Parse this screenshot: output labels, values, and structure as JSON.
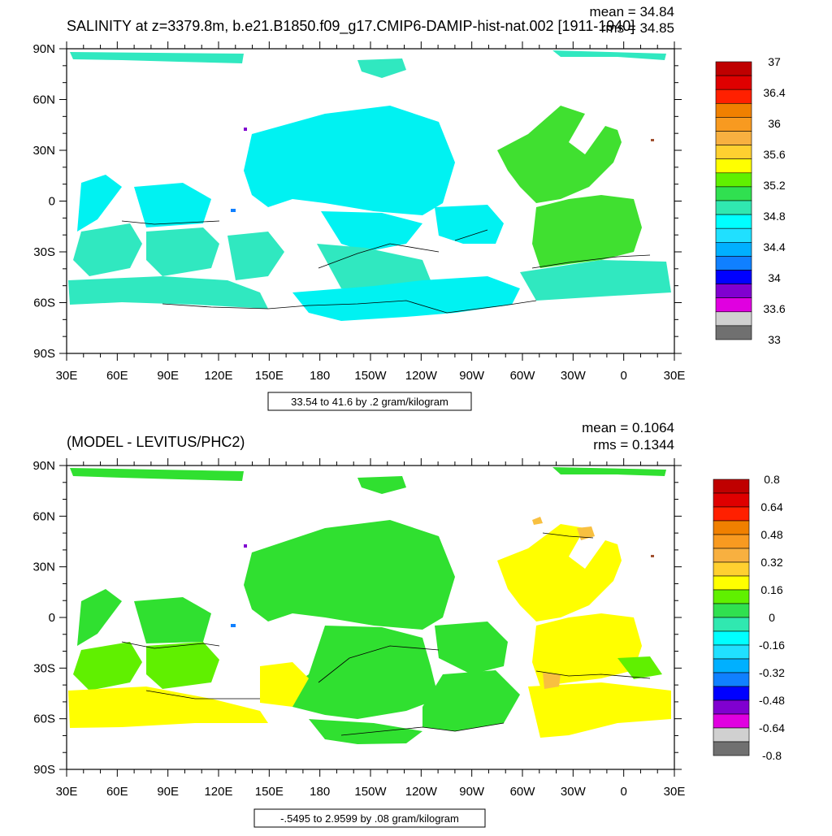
{
  "top": {
    "title": "SALINITY at z=3379.8m, b.e21.B1850.f09_g17.CMIP6-DAMIP-hist-nat.002 [1911-1940]",
    "mean": "mean = 34.84",
    "rms": "rms = 34.85",
    "contour_info": "33.54 to 41.6 by .2 gram/kilogram",
    "colorbar_labels": [
      "37",
      "36.4",
      "36",
      "35.6",
      "35.2",
      "34.8",
      "34.4",
      "34",
      "33.6",
      "33"
    ]
  },
  "bottom": {
    "title": "(MODEL - LEVITUS/PHC2)",
    "mean": "mean = 0.1064",
    "rms": "rms = 0.1344",
    "contour_info": "-.5495 to 2.9599 by .08 gram/kilogram",
    "colorbar_labels": [
      "0.8",
      "0.64",
      "0.48",
      "0.32",
      "0.16",
      "0",
      "-0.16",
      "-0.32",
      "-0.48",
      "-0.64",
      "-0.8"
    ]
  },
  "axes": {
    "lat_labels": [
      "90N",
      "60N",
      "30N",
      "0",
      "30S",
      "60S",
      "90S"
    ],
    "lon_labels": [
      "30E",
      "60E",
      "90E",
      "120E",
      "150E",
      "180",
      "150W",
      "120W",
      "90W",
      "60W",
      "30W",
      "0",
      "30E"
    ]
  },
  "colors": {
    "colorbar": [
      "#bf0000",
      "#df0000",
      "#ff2000",
      "#f08000",
      "#f89a20",
      "#f8b040",
      "#ffd030",
      "#ffff00",
      "#60f000",
      "#30e050",
      "#30e8b0",
      "#00ffff",
      "#20e0ff",
      "#00b0ff",
      "#1080ff",
      "#0000ff",
      "#8000d0",
      "#e000e0",
      "#d0d0d0",
      "#707070"
    ],
    "top_field": {
      "pacific_indian": "#00f2f2",
      "southern": "#30e8c0",
      "atlantic": "#40e030"
    },
    "bottom_field": {
      "green": "#30e030",
      "lightgreen": "#60f000",
      "yellow": "#ffff00",
      "amber": "#ffd030"
    }
  }
}
